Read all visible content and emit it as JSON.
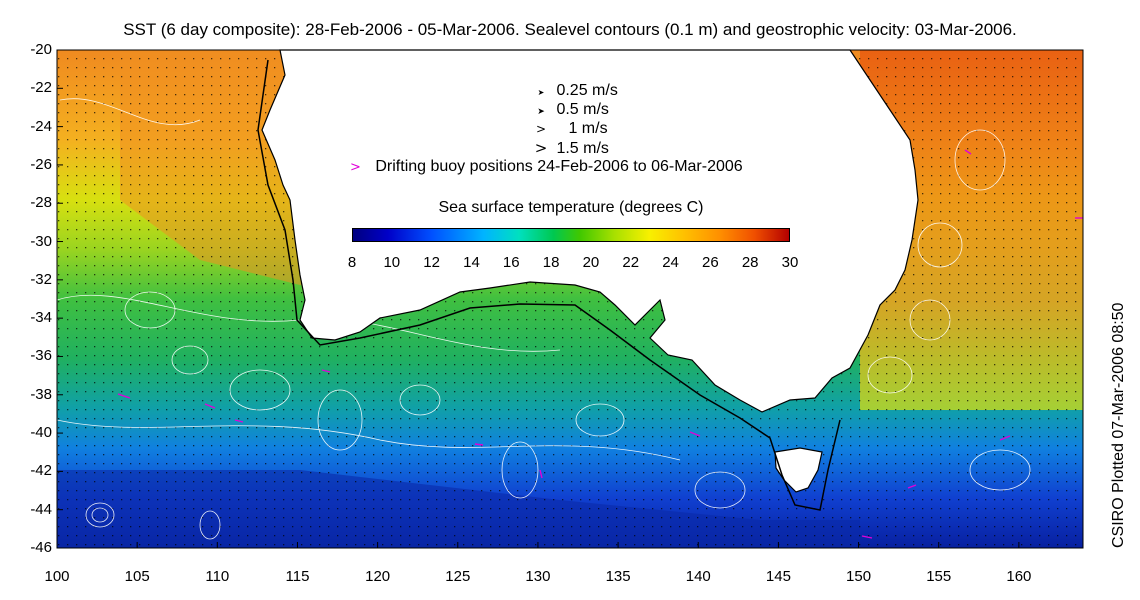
{
  "title": "SST (6 day composite): 28-Feb-2006 - 05-Mar-2006. Sealevel contours (0.1 m) and geostrophic velocity: 03-Mar-2006.",
  "credit": "CSIRO Plotted 07-Mar-2006 08:50",
  "velocity_legend": [
    {
      "symbol": "arrow-small-icon",
      "label": "0.25 m/s"
    },
    {
      "symbol": "arrow-medium-icon",
      "label": "0.5 m/s"
    },
    {
      "symbol": "arrow-large-icon",
      "label": "1 m/s"
    },
    {
      "symbol": "arrow-xlarge-icon",
      "label": "1.5 m/s"
    }
  ],
  "buoy_legend": {
    "symbol": ">",
    "label": "Drifting buoy positions 24-Feb-2006 to 06-Mar-2006",
    "color": "#e000d8"
  },
  "colorbar": {
    "title": "Sea surface temperature (degrees C)",
    "range": [
      8,
      30
    ],
    "ticks": [
      "8",
      "10",
      "12",
      "14",
      "16",
      "18",
      "20",
      "22",
      "24",
      "26",
      "28",
      "30"
    ]
  },
  "axes": {
    "x_ticks": [
      "100",
      "105",
      "110",
      "115",
      "120",
      "125",
      "130",
      "135",
      "140",
      "145",
      "150",
      "155",
      "160"
    ],
    "y_ticks": [
      "-20",
      "-22",
      "-24",
      "-26",
      "-28",
      "-30",
      "-32",
      "-34",
      "-36",
      "-38",
      "-40",
      "-42",
      "-44",
      "-46"
    ],
    "lon_range": [
      100,
      164
    ],
    "lat_range": [
      -46,
      -20
    ]
  },
  "colors": {
    "land": "#ffffff",
    "contours": "#ffffff",
    "coast_line": "#000000",
    "buoys": "#e000d8"
  }
}
